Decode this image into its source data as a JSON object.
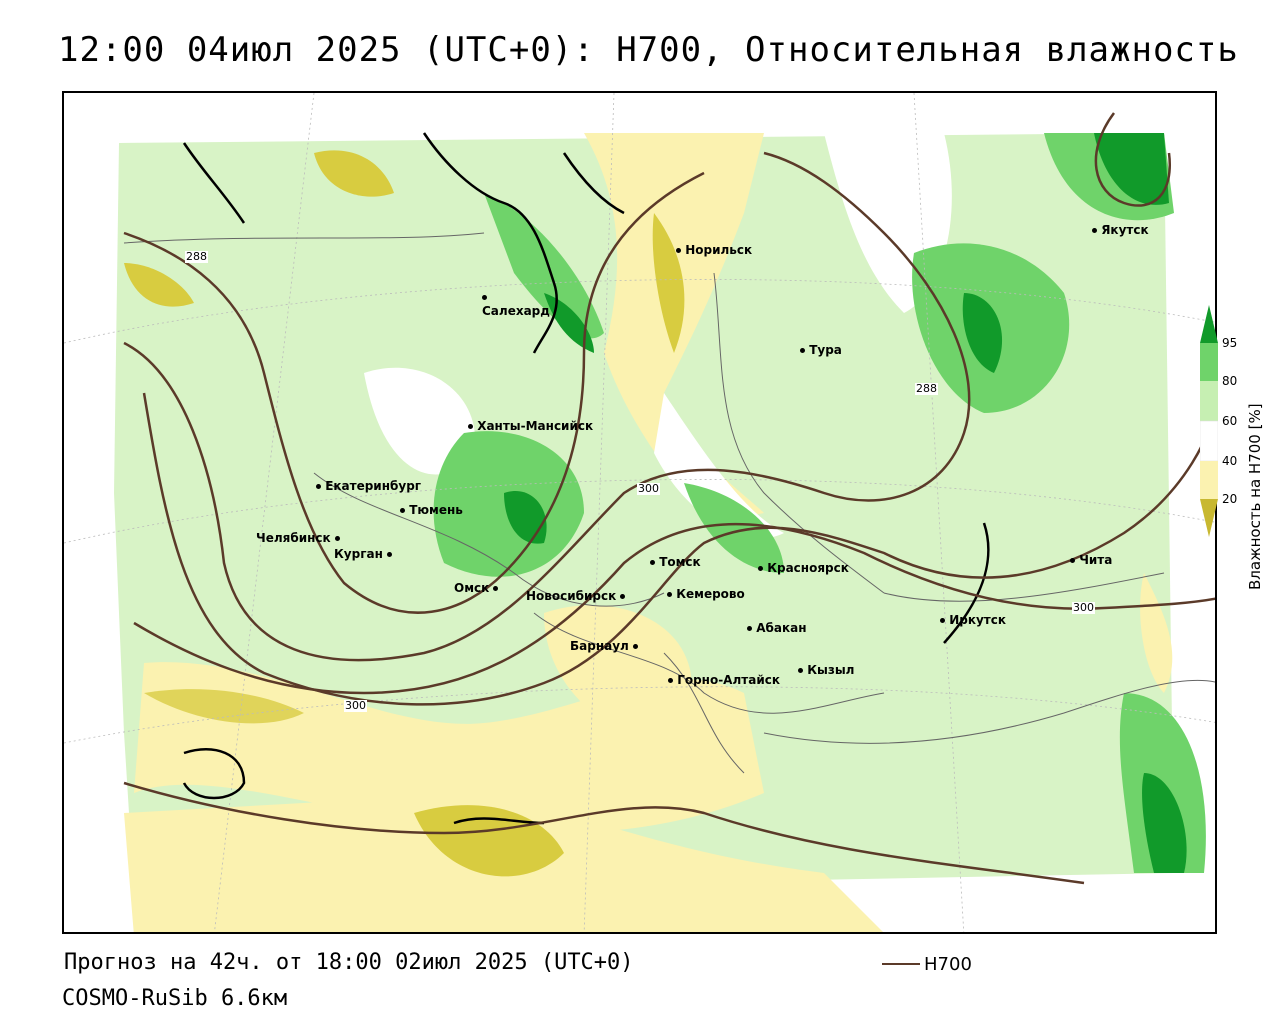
{
  "title": "12:00 04июл 2025 (UTC+0): H700, Относительная влажность",
  "forecast_text": "Прогноз на 42ч. от 18:00 02июл 2025 (UTC+0)",
  "model_text": "COSMO-RuSib 6.6км",
  "contour_legend": {
    "label": "H700",
    "color": "#5b3a29"
  },
  "colorbar": {
    "title": "Влажность на H700 [%]",
    "ticks": [
      "95",
      "80",
      "60",
      "40",
      "20"
    ],
    "colors": {
      "very_dry": "#c8b830",
      "dry": "#fbf2b0",
      "neutral": "#ffffff",
      "moist": "#c6efb2",
      "wet": "#6fd36a",
      "very_wet": "#119a2a"
    }
  },
  "cities": [
    {
      "name": "Норильск"
    },
    {
      "name": "Якутск"
    },
    {
      "name": "Салехард"
    },
    {
      "name": "Тура"
    },
    {
      "name": "Ханты-Мансийск"
    },
    {
      "name": "Екатеринбург"
    },
    {
      "name": "Тюмень"
    },
    {
      "name": "Челябинск"
    },
    {
      "name": "Курган"
    },
    {
      "name": "Омск"
    },
    {
      "name": "Новосибирск"
    },
    {
      "name": "Томск"
    },
    {
      "name": "Кемерово"
    },
    {
      "name": "Красноярск"
    },
    {
      "name": "Абакан"
    },
    {
      "name": "Барнаул"
    },
    {
      "name": "Горно-Алтайск"
    },
    {
      "name": "Кызыл"
    },
    {
      "name": "Иркутск"
    },
    {
      "name": "Чита"
    }
  ],
  "isoline_labels": [
    "288",
    "288",
    "300",
    "300",
    "300"
  ]
}
